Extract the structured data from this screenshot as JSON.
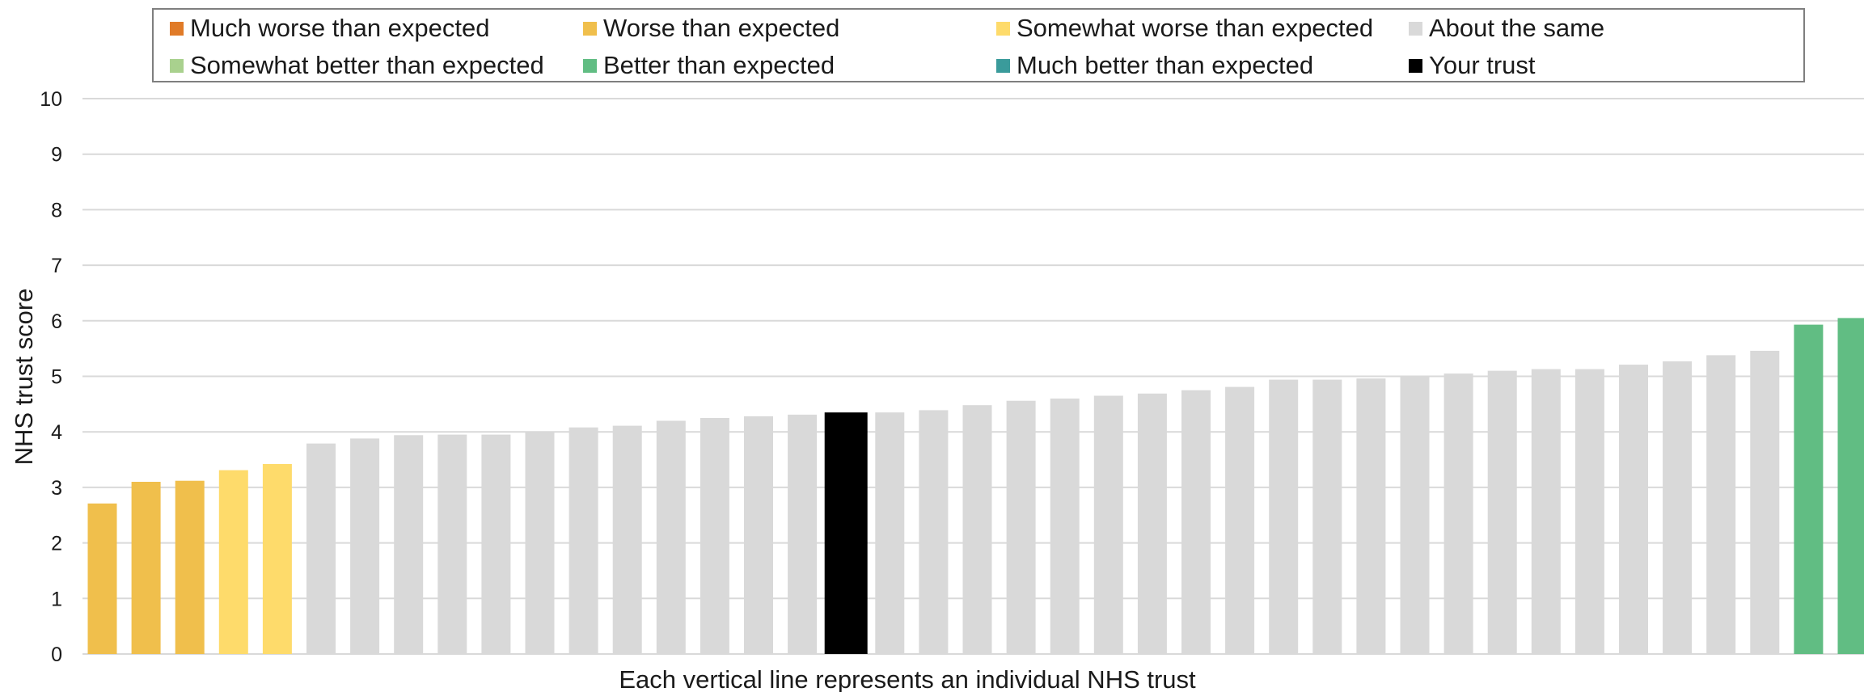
{
  "chart_data": {
    "type": "bar",
    "title": "",
    "xlabel": "Each vertical line represents an individual NHS trust",
    "ylabel": "NHS trust score",
    "ylim": [
      0,
      10
    ],
    "yticks": [
      "0",
      "1",
      "2",
      "3",
      "4",
      "5",
      "6",
      "7",
      "8",
      "9",
      "10"
    ],
    "grid": true,
    "legend_placement": "top",
    "legend": [
      {
        "key": "much_worse",
        "label": "Much worse than expected",
        "color": "#e07b28"
      },
      {
        "key": "worse",
        "label": "Worse than expected",
        "color": "#f0bf4c"
      },
      {
        "key": "somewhat_worse",
        "label": "Somewhat worse than expected",
        "color": "#fedb6b"
      },
      {
        "key": "same",
        "label": "About the same",
        "color": "#d9d9d9"
      },
      {
        "key": "somewhat_better",
        "label": "Somewhat better than expected",
        "color": "#a9d18e"
      },
      {
        "key": "better",
        "label": "Better than expected",
        "color": "#61bd83"
      },
      {
        "key": "much_better",
        "label": "Much better than expected",
        "color": "#3a9b9b"
      },
      {
        "key": "your_trust",
        "label": "Your trust",
        "color": "#000000"
      }
    ],
    "values": [
      2.71,
      3.1,
      3.12,
      3.31,
      3.42,
      3.79,
      3.88,
      3.94,
      3.95,
      3.95,
      4.0,
      4.08,
      4.11,
      4.2,
      4.25,
      4.28,
      4.31,
      4.35,
      4.35,
      4.39,
      4.48,
      4.56,
      4.6,
      4.65,
      4.69,
      4.75,
      4.81,
      4.94,
      4.94,
      4.96,
      4.99,
      5.05,
      5.1,
      5.13,
      5.13,
      5.21,
      5.27,
      5.38,
      5.46,
      5.93,
      6.05
    ],
    "bar_categories": [
      "worse",
      "worse",
      "worse",
      "somewhat_worse",
      "somewhat_worse",
      "same",
      "same",
      "same",
      "same",
      "same",
      "same",
      "same",
      "same",
      "same",
      "same",
      "same",
      "same",
      "your_trust",
      "same",
      "same",
      "same",
      "same",
      "same",
      "same",
      "same",
      "same",
      "same",
      "same",
      "same",
      "same",
      "same",
      "same",
      "same",
      "same",
      "same",
      "same",
      "same",
      "same",
      "same",
      "better",
      "better"
    ]
  }
}
